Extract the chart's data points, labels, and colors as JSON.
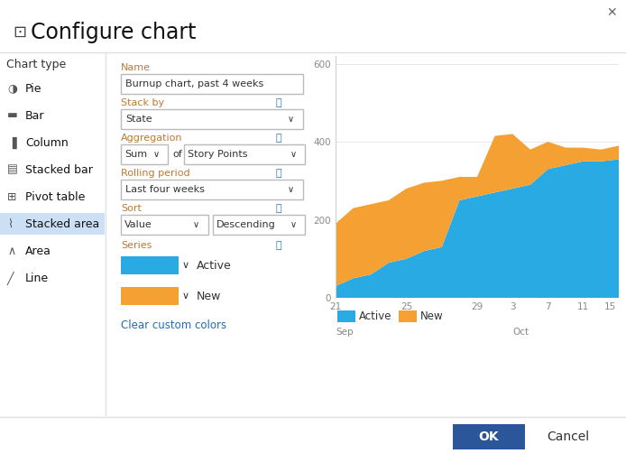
{
  "title": "Configure chart",
  "bg_color": "#ffffff",
  "left_panel": {
    "chart_type_label": "Chart type",
    "items": [
      "Pie",
      "Bar",
      "Column",
      "Stacked bar",
      "Pivot table",
      "Stacked area",
      "Area",
      "Line"
    ],
    "selected": "Stacked area",
    "selected_bg": "#cce0f5"
  },
  "form": {
    "name_label": "Name",
    "name_value": "Burnup chart, past 4 weeks",
    "stack_by_label": "Stack by",
    "stack_by_value": "State",
    "aggregation_label": "Aggregation",
    "aggregation_sum": "Sum",
    "aggregation_of": "of",
    "aggregation_measure": "Story Points",
    "rolling_label": "Rolling period",
    "rolling_value": "Last four weeks",
    "sort_label": "Sort",
    "sort_value": "Value",
    "sort_dir": "Descending",
    "series_label": "Series",
    "series_items": [
      {
        "color": "#29aae2",
        "label": "Active"
      },
      {
        "color": "#f5a033",
        "label": "New"
      }
    ],
    "clear_link": "Clear custom colors"
  },
  "chart": {
    "active_color": "#29aae2",
    "new_color": "#f5a033",
    "active_values": [
      30,
      50,
      60,
      90,
      100,
      120,
      130,
      250,
      260,
      270,
      280,
      290,
      330,
      340,
      350,
      350,
      355
    ],
    "total_values": [
      190,
      230,
      240,
      250,
      280,
      295,
      300,
      310,
      310,
      415,
      420,
      380,
      400,
      385,
      385,
      380,
      390
    ]
  },
  "buttons": {
    "ok_label": "OK",
    "ok_bg": "#2b579a",
    "ok_fg": "#ffffff",
    "cancel_label": "Cancel",
    "cancel_fg": "#333333"
  },
  "label_color": "#c07832",
  "link_color": "#1e6eb5",
  "info_color": "#1e6eb5",
  "text_color": "#333333"
}
